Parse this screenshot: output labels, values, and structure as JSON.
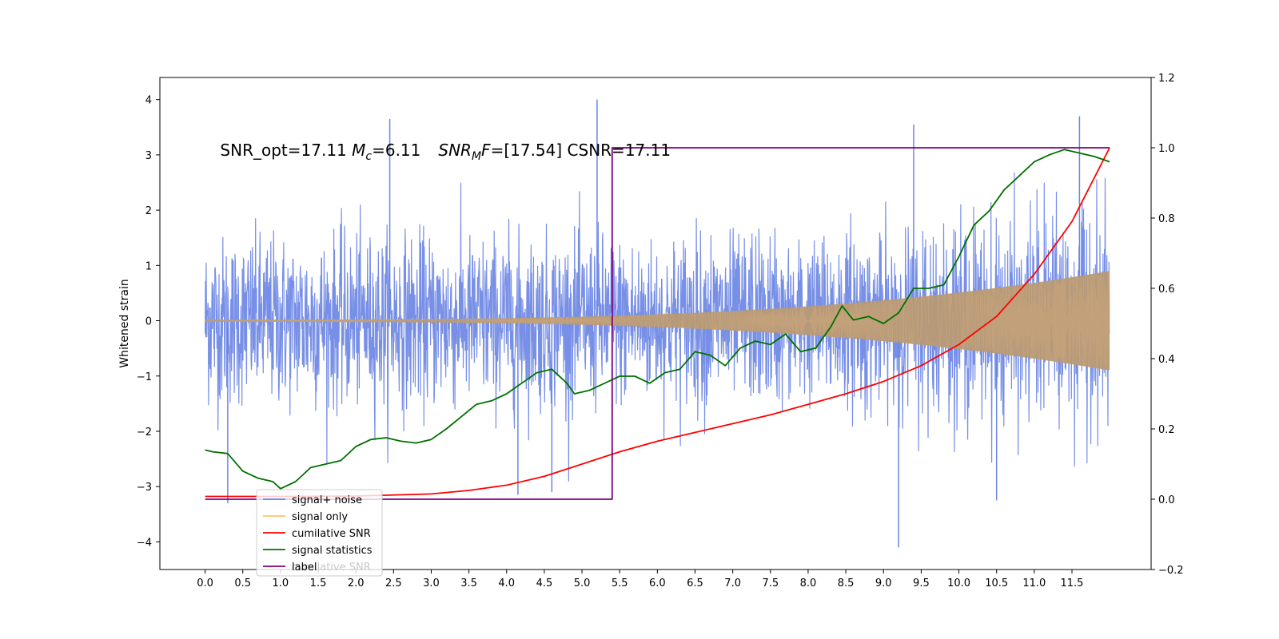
{
  "chart_data": {
    "type": "line",
    "annotation": {
      "prefix": "SNR_opt=17.11 ",
      "mc_symbol": "M",
      "mc_sub": "c",
      "mc_value": "=6.11",
      "mf_symbol": "SNR",
      "mf_sub": "M",
      "mf_sym2": "F",
      "mf_value": "=[17.54] CSNR=17.11"
    },
    "ylabel": "Whitened strain",
    "x_ticks": [
      0.0,
      0.5,
      1.0,
      1.5,
      2.0,
      2.5,
      3.0,
      3.5,
      4.0,
      4.5,
      5.0,
      5.5,
      6.0,
      6.5,
      7.0,
      7.5,
      8.0,
      8.5,
      9.0,
      9.5,
      10.0,
      10.5,
      11.0,
      11.5
    ],
    "x_tick_labels": [
      "0.0",
      "0.5",
      "1.0",
      "1.5",
      "2.0",
      "2.5",
      "3.0",
      "3.5",
      "4.0",
      "4.5",
      "5.0",
      "5.5",
      "6.0",
      "6.5",
      "7.0",
      "7.5",
      "8.0",
      "8.5",
      "9.0",
      "9.5",
      "10.0",
      "10.5",
      "11.0",
      "11.5"
    ],
    "xlim": [
      -0.6,
      12.55
    ],
    "ylim_left": [
      -4.5,
      4.4
    ],
    "y_ticks_left": [
      -4,
      -3,
      -2,
      -1,
      0,
      1,
      2,
      3,
      4
    ],
    "y_tick_labels_left": [
      "−4",
      "−3",
      "−2",
      "−1",
      "0",
      "1",
      "2",
      "3",
      "4"
    ],
    "ylim_right": [
      -0.2,
      1.2
    ],
    "y_ticks_right": [
      -0.2,
      0.0,
      0.2,
      0.4,
      0.6,
      0.8,
      1.0,
      1.2
    ],
    "y_tick_labels_right": [
      "−0.2",
      "0.0",
      "0.2",
      "0.4",
      "0.6",
      "0.8",
      "1.0",
      "1.2"
    ],
    "legend_position": "lower-left",
    "series": [
      {
        "name": "signal+ noise",
        "color": "#6b86e4",
        "axis": "left",
        "style": "noise",
        "base_amplitude": 1.3,
        "chirp_amplitude_end": 0.9,
        "x_range": [
          0.0,
          12.0
        ],
        "spikes": [
          [
            0.3,
            -3.3
          ],
          [
            2.45,
            3.65
          ],
          [
            4.15,
            -3.15
          ],
          [
            4.6,
            -3.1
          ],
          [
            5.2,
            4.0
          ],
          [
            9.4,
            3.55
          ],
          [
            9.2,
            -4.1
          ],
          [
            10.5,
            -3.25
          ],
          [
            11.6,
            3.7
          ]
        ]
      },
      {
        "name": "signal only",
        "color": "#ffb347",
        "axis": "left",
        "style": "chirp",
        "amplitude_start": 0.02,
        "amplitude_end": 0.9,
        "x_range": [
          0.0,
          12.0
        ]
      },
      {
        "name": "cumilative SNR",
        "color": "#ff0000",
        "axis": "right",
        "x": [
          0.0,
          1.0,
          2.0,
          3.0,
          3.5,
          4.0,
          4.5,
          5.0,
          5.5,
          6.0,
          6.5,
          7.0,
          7.5,
          8.0,
          8.5,
          9.0,
          9.5,
          10.0,
          10.5,
          11.0,
          11.5,
          12.0
        ],
        "y": [
          0.008,
          0.008,
          0.009,
          0.015,
          0.025,
          0.04,
          0.065,
          0.1,
          0.135,
          0.165,
          0.19,
          0.215,
          0.24,
          0.27,
          0.3,
          0.335,
          0.38,
          0.44,
          0.52,
          0.64,
          0.79,
          1.0
        ]
      },
      {
        "name": "signal statistics",
        "color": "#007000",
        "axis": "right",
        "x": [
          0.0,
          0.1,
          0.3,
          0.5,
          0.7,
          0.9,
          1.0,
          1.2,
          1.4,
          1.6,
          1.8,
          2.0,
          2.2,
          2.4,
          2.6,
          2.8,
          3.0,
          3.2,
          3.4,
          3.6,
          3.8,
          4.0,
          4.2,
          4.4,
          4.6,
          4.8,
          4.9,
          5.1,
          5.3,
          5.5,
          5.7,
          5.9,
          6.1,
          6.3,
          6.5,
          6.7,
          6.9,
          7.1,
          7.3,
          7.5,
          7.7,
          7.9,
          8.1,
          8.3,
          8.45,
          8.6,
          8.8,
          9.0,
          9.2,
          9.4,
          9.6,
          9.8,
          10.0,
          10.2,
          10.4,
          10.6,
          10.8,
          11.0,
          11.2,
          11.4,
          11.6,
          11.8,
          12.0
        ],
        "y": [
          0.14,
          0.135,
          0.13,
          0.08,
          0.06,
          0.05,
          0.03,
          0.05,
          0.09,
          0.1,
          0.11,
          0.15,
          0.17,
          0.175,
          0.165,
          0.16,
          0.17,
          0.2,
          0.235,
          0.27,
          0.28,
          0.3,
          0.33,
          0.36,
          0.37,
          0.33,
          0.3,
          0.31,
          0.33,
          0.35,
          0.35,
          0.33,
          0.36,
          0.37,
          0.42,
          0.41,
          0.38,
          0.43,
          0.45,
          0.44,
          0.47,
          0.42,
          0.43,
          0.49,
          0.55,
          0.51,
          0.52,
          0.5,
          0.53,
          0.6,
          0.6,
          0.61,
          0.69,
          0.78,
          0.82,
          0.88,
          0.92,
          0.96,
          0.98,
          0.995,
          0.985,
          0.975,
          0.96
        ]
      },
      {
        "name": "label",
        "color": "#800080",
        "axis": "right",
        "x": [
          0.0,
          5.4,
          5.4,
          5.45,
          12.0
        ],
        "y": [
          0.0,
          0.0,
          1.0,
          1.0,
          1.0
        ]
      }
    ],
    "legend_ghost_text": "cumilative SNR"
  }
}
